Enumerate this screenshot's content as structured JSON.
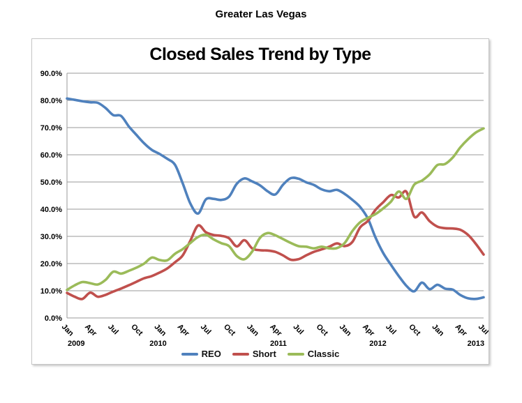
{
  "page": {
    "header": "Greater Las Vegas"
  },
  "chart_data": {
    "type": "line",
    "title": "Closed Sales Trend by Type",
    "subtitle": "",
    "x_axis": {
      "unit": "month",
      "start": "Jan 2009",
      "end": "Jul 2013",
      "points_per_series": 55,
      "tick_labels": [
        "Jan",
        "Apr",
        "Jul",
        "Oct",
        "Jan",
        "Apr",
        "Jul",
        "Oct",
        "Jan",
        "Apr",
        "Jul",
        "Oct",
        "Jan",
        "Apr",
        "Jul",
        "Oct",
        "Jan",
        "Apr",
        "Jul"
      ],
      "tick_month_indices": [
        0,
        3,
        6,
        9,
        12,
        15,
        18,
        21,
        24,
        27,
        30,
        33,
        36,
        39,
        42,
        45,
        48,
        51,
        54
      ],
      "year_labels": [
        {
          "text": "2009",
          "month_pos": 1.2
        },
        {
          "text": "2010",
          "month_pos": 11.8
        },
        {
          "text": "2011",
          "month_pos": 27.4
        },
        {
          "text": "2012",
          "month_pos": 40.3
        },
        {
          "text": "2013",
          "month_pos": 53.0
        }
      ]
    },
    "y_axis": {
      "min": 0,
      "max": 90,
      "step": 10,
      "tick_labels": [
        "0.0%",
        "10.0%",
        "20.0%",
        "30.0%",
        "40.0%",
        "50.0%",
        "60.0%",
        "70.0%",
        "80.0%",
        "90.0%"
      ],
      "grid": true
    },
    "legend": {
      "position": "bottom",
      "items": [
        "REO",
        "Short",
        "Classic"
      ]
    },
    "series": [
      {
        "name": "REO",
        "color": "#4F81BD",
        "values": [
          80.7,
          80.2,
          79.7,
          79.3,
          79.1,
          77.2,
          74.6,
          74.3,
          70.5,
          67.3,
          64.2,
          61.8,
          60.3,
          58.5,
          56.3,
          49.5,
          42.0,
          38.4,
          43.6,
          43.8,
          43.4,
          44.6,
          49.3,
          51.3,
          50.2,
          48.8,
          46.6,
          45.4,
          49.0,
          51.4,
          51.2,
          49.9,
          48.9,
          47.3,
          46.6,
          47.1,
          45.6,
          43.4,
          40.8,
          36.5,
          29.5,
          23.8,
          19.5,
          15.4,
          11.8,
          9.8,
          13.0,
          10.6,
          12.2,
          10.8,
          10.4,
          8.4,
          7.2,
          7.0,
          7.6
        ]
      },
      {
        "name": "Short",
        "color": "#C0504D",
        "values": [
          9.2,
          7.8,
          7.0,
          9.3,
          7.8,
          8.5,
          9.7,
          10.8,
          12.0,
          13.3,
          14.6,
          15.4,
          16.7,
          18.2,
          20.5,
          23.0,
          28.5,
          34.0,
          31.5,
          30.5,
          30.2,
          29.3,
          26.3,
          28.6,
          25.6,
          24.9,
          24.8,
          24.3,
          23.0,
          21.4,
          21.6,
          23.0,
          24.3,
          25.2,
          26.2,
          27.4,
          26.4,
          28.0,
          33.3,
          35.7,
          39.8,
          42.6,
          45.2,
          44.3,
          46.4,
          37.3,
          38.8,
          35.6,
          33.6,
          33.0,
          32.9,
          32.4,
          30.5,
          27.2,
          23.3
        ]
      },
      {
        "name": "Classic",
        "color": "#9BBB59",
        "values": [
          10.3,
          12.0,
          13.2,
          12.8,
          12.3,
          14.0,
          17.0,
          16.3,
          17.3,
          18.5,
          20.0,
          22.2,
          21.3,
          21.2,
          23.6,
          25.3,
          27.6,
          29.8,
          30.6,
          28.9,
          27.5,
          26.4,
          22.8,
          21.6,
          24.4,
          29.4,
          31.2,
          30.4,
          29.0,
          27.6,
          26.4,
          26.2,
          25.6,
          26.2,
          25.6,
          25.7,
          27.6,
          32.0,
          35.2,
          36.8,
          38.2,
          40.3,
          42.8,
          46.5,
          43.8,
          49.0,
          50.5,
          52.8,
          56.2,
          56.6,
          59.0,
          62.8,
          65.8,
          68.2,
          69.7
        ]
      }
    ]
  },
  "colors": {
    "grid": "#9A9A9A",
    "frame_border": "#C6C6C6",
    "background": "#FFFFFF",
    "text": "#000000"
  }
}
